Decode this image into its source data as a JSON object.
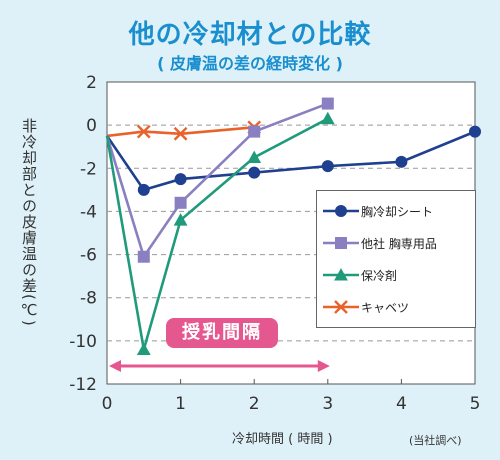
{
  "title": "他の冷却材との比較",
  "subtitle": "( 皮膚温の差の経時変化 )",
  "note": "(当社調べ)",
  "chart_data": {
    "type": "line",
    "title": "他の冷却材との比較",
    "subtitle": "( 皮膚温の差の経時変化 )",
    "xlabel": "冷却時間 ( 時間 )",
    "ylabel": "非冷却部との皮膚温の差(℃)",
    "xlim": [
      0,
      5
    ],
    "ylim": [
      -12,
      2
    ],
    "xticks": [
      0,
      1,
      2,
      3,
      4,
      5
    ],
    "yticks": [
      2,
      0,
      -2,
      -4,
      -6,
      -8,
      -10,
      -12
    ],
    "grid": "horizontal-dashed",
    "legend_position": "right",
    "series": [
      {
        "name": "胸冷却シート",
        "color": "#1f3f8f",
        "marker": "circle",
        "x": [
          0,
          0.5,
          1,
          2,
          3,
          4,
          5
        ],
        "y": [
          -0.5,
          -3.0,
          -2.5,
          -2.2,
          -1.9,
          -1.7,
          -0.3
        ]
      },
      {
        "name": "他社 胸専用品",
        "color": "#8a7fc0",
        "marker": "square",
        "x": [
          0,
          0.5,
          1,
          2,
          3
        ],
        "y": [
          -0.5,
          -6.1,
          -3.6,
          -0.3,
          1.0
        ]
      },
      {
        "name": "保冷剤",
        "color": "#1f9a7a",
        "marker": "triangle",
        "x": [
          0,
          0.5,
          1,
          2,
          3
        ],
        "y": [
          -0.5,
          -10.4,
          -4.4,
          -1.5,
          0.3
        ]
      },
      {
        "name": "キャベツ",
        "color": "#e8622a",
        "marker": "x",
        "x": [
          0,
          0.5,
          1,
          2
        ],
        "y": [
          -0.5,
          -0.3,
          -0.4,
          -0.1
        ]
      }
    ],
    "annotation": {
      "label": "授乳間隔",
      "x_range": [
        0,
        3
      ],
      "color": "#e5578f"
    }
  }
}
